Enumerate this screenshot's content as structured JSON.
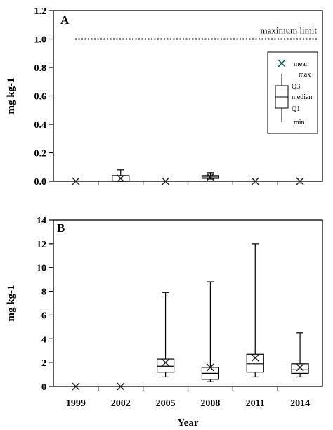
{
  "chart_data": [
    {
      "type": "box",
      "panel_label": "A",
      "ylabel": "mg kg-1",
      "xlabel": "",
      "ylim": [
        0,
        1.2
      ],
      "yticks": [
        "0.0",
        "0.2",
        "0.4",
        "0.6",
        "0.8",
        "1.0",
        "1.2"
      ],
      "ytick_values": [
        0,
        0.2,
        0.4,
        0.6,
        0.8,
        1.0,
        1.2
      ],
      "categories": [
        "1999",
        "2002",
        "2005",
        "2008",
        "2011",
        "2014"
      ],
      "show_category_labels": false,
      "boxes": [
        {
          "category": "1999",
          "min": 0,
          "q1": 0,
          "median": 0,
          "q3": 0,
          "max": 0,
          "mean": 0
        },
        {
          "category": "2002",
          "min": 0,
          "q1": 0,
          "median": 0,
          "q3": 0.04,
          "max": 0.08,
          "mean": 0.02
        },
        {
          "category": "2005",
          "min": 0,
          "q1": 0,
          "median": 0,
          "q3": 0,
          "max": 0,
          "mean": 0
        },
        {
          "category": "2008",
          "min": 0.015,
          "q1": 0.02,
          "median": 0.03,
          "q3": 0.04,
          "max": 0.06,
          "mean": 0.03
        },
        {
          "category": "2011",
          "min": 0,
          "q1": 0,
          "median": 0,
          "q3": 0,
          "max": 0,
          "mean": 0
        },
        {
          "category": "2014",
          "min": 0,
          "q1": 0,
          "median": 0,
          "q3": 0,
          "max": 0,
          "mean": 0
        }
      ],
      "reference_line": {
        "value": 1.0,
        "label": "maximum limit",
        "style": "dotted"
      },
      "legend": {
        "placement": "right",
        "items": [
          "mean",
          "max",
          "Q3",
          "median",
          "Q1",
          "min"
        ]
      },
      "grid": false
    },
    {
      "type": "box",
      "panel_label": "B",
      "ylabel": "mg kg-1",
      "xlabel": "Year",
      "ylim": [
        0,
        14
      ],
      "yticks": [
        "0",
        "2",
        "4",
        "6",
        "8",
        "10",
        "12",
        "14"
      ],
      "ytick_values": [
        0,
        2,
        4,
        6,
        8,
        10,
        12,
        14
      ],
      "categories": [
        "1999",
        "2002",
        "2005",
        "2008",
        "2011",
        "2014"
      ],
      "show_category_labels": true,
      "boxes": [
        {
          "category": "1999",
          "min": 0,
          "q1": 0,
          "median": 0,
          "q3": 0,
          "max": 0,
          "mean": 0
        },
        {
          "category": "2002",
          "min": 0,
          "q1": 0,
          "median": 0,
          "q3": 0,
          "max": 0,
          "mean": 0
        },
        {
          "category": "2005",
          "min": 0.8,
          "q1": 1.2,
          "median": 1.7,
          "q3": 2.3,
          "max": 7.9,
          "mean": 2.0
        },
        {
          "category": "2008",
          "min": 0.4,
          "q1": 0.6,
          "median": 1.1,
          "q3": 1.6,
          "max": 8.8,
          "mean": 1.6
        },
        {
          "category": "2011",
          "min": 0.8,
          "q1": 1.2,
          "median": 1.9,
          "q3": 2.7,
          "max": 12.0,
          "mean": 2.4
        },
        {
          "category": "2014",
          "min": 0.8,
          "q1": 1.1,
          "median": 1.4,
          "q3": 1.9,
          "max": 4.5,
          "mean": 1.6
        }
      ],
      "grid": false
    }
  ]
}
